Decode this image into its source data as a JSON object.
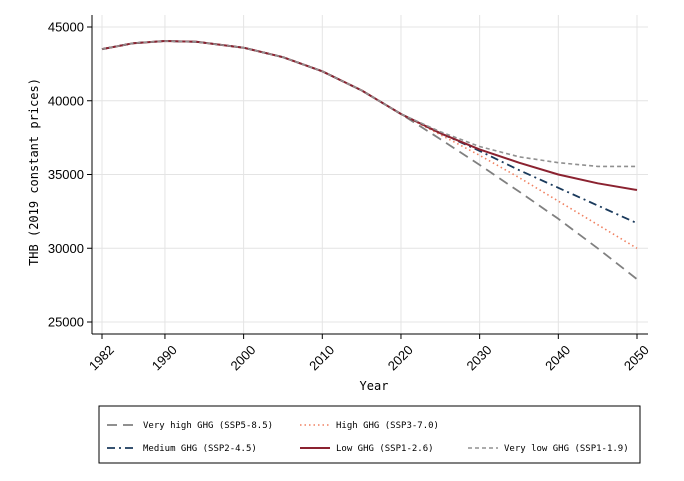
{
  "chart_data": {
    "type": "line",
    "xlabel": "Year",
    "ylabel": "THB (2019 constant prices)",
    "xlim": [
      1982,
      2050
    ],
    "ylim": [
      24500,
      45500
    ],
    "x_ticks": [
      1982,
      1990,
      2000,
      2010,
      2020,
      2030,
      2040,
      2050
    ],
    "y_ticks": [
      25000,
      30000,
      35000,
      40000,
      45000
    ],
    "grid": true,
    "legend_position": "bottom",
    "series": [
      {
        "name": "Very high GHG (SSP5-8.5)",
        "color": "#808080",
        "dash": "long-dash",
        "x": [
          1982,
          1986,
          1990,
          1994,
          2000,
          2005,
          2010,
          2015,
          2020,
          2025,
          2030,
          2035,
          2040,
          2045,
          2050
        ],
        "y": [
          43500,
          43900,
          44050,
          44000,
          43600,
          42950,
          42000,
          40700,
          39100,
          37400,
          35650,
          33850,
          32000,
          30000,
          27900
        ]
      },
      {
        "name": "High GHG (SSP3-7.0)",
        "color": "#f08060",
        "dash": "dotted",
        "x": [
          1982,
          1986,
          1990,
          1994,
          2000,
          2005,
          2010,
          2015,
          2020,
          2025,
          2030,
          2035,
          2040,
          2045,
          2050
        ],
        "y": [
          43500,
          43900,
          44050,
          44000,
          43600,
          42950,
          42000,
          40700,
          39100,
          37700,
          36300,
          34800,
          33200,
          31600,
          30000
        ]
      },
      {
        "name": "Medium GHG (SSP2-4.5)",
        "color": "#1a3a5c",
        "dash": "dash-dot",
        "x": [
          1982,
          1986,
          1990,
          1994,
          2000,
          2005,
          2010,
          2015,
          2020,
          2025,
          2030,
          2035,
          2040,
          2045,
          2050
        ],
        "y": [
          43500,
          43900,
          44050,
          44000,
          43600,
          42950,
          42000,
          40700,
          39100,
          37800,
          36600,
          35300,
          34100,
          32900,
          31700
        ]
      },
      {
        "name": "Low GHG (SSP1-2.6)",
        "color": "#8b2230",
        "dash": "solid",
        "x": [
          1982,
          1986,
          1990,
          1994,
          2000,
          2005,
          2010,
          2015,
          2020,
          2025,
          2030,
          2035,
          2040,
          2045,
          2050
        ],
        "y": [
          43500,
          43900,
          44050,
          44000,
          43600,
          42950,
          42000,
          40700,
          39100,
          37800,
          36700,
          35800,
          35000,
          34400,
          33950
        ]
      },
      {
        "name": "Very low GHG (SSP1-1.9)",
        "color": "#909090",
        "dash": "short-dash",
        "x": [
          1982,
          1986,
          1990,
          1994,
          2000,
          2005,
          2010,
          2015,
          2020,
          2025,
          2030,
          2035,
          2040,
          2045,
          2050
        ],
        "y": [
          43500,
          43900,
          44050,
          44000,
          43600,
          42950,
          42000,
          40700,
          39100,
          37900,
          36900,
          36200,
          35800,
          35550,
          35550
        ]
      }
    ]
  }
}
